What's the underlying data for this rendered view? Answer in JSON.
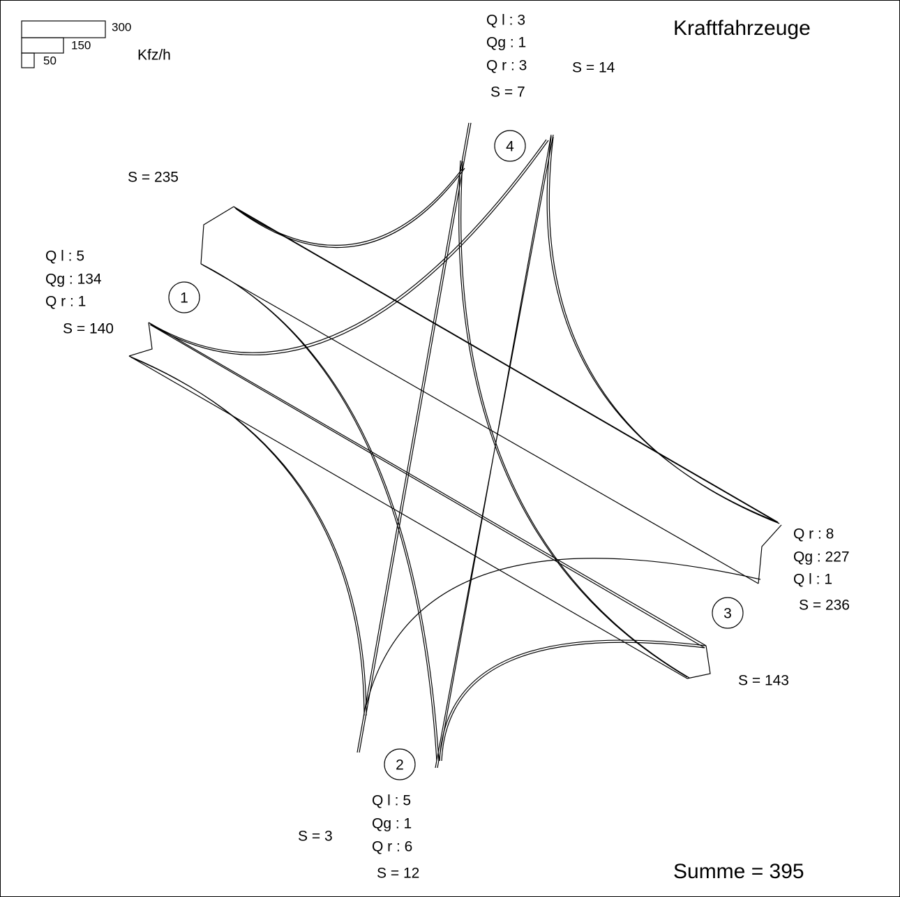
{
  "header": {
    "title": "Kraftfahrzeuge",
    "total": "Summe = 395"
  },
  "legend": {
    "unit": "Kfz/h",
    "scale": [
      "300",
      "150",
      "50"
    ]
  },
  "approaches": [
    {
      "number": "1",
      "left": "Q l : 5",
      "straight": "Qg : 134",
      "right": "Q r : 1",
      "sum": "S = 140",
      "exit_sum": "S = 235"
    },
    {
      "number": "2",
      "left": "Q l : 5",
      "straight": "Qg : 1",
      "right": "Q r : 6",
      "sum": "S = 12",
      "exit_sum": "S = 3"
    },
    {
      "number": "3",
      "left": "Q l : 1",
      "straight": "Qg : 227",
      "right": "Q r : 8",
      "sum": "S = 236",
      "exit_sum": "S = 143"
    },
    {
      "number": "4",
      "left": "Q l : 3",
      "straight": "Qg : 1",
      "right": "Q r : 3",
      "sum": "S = 7",
      "exit_sum": "S = 14"
    }
  ]
}
